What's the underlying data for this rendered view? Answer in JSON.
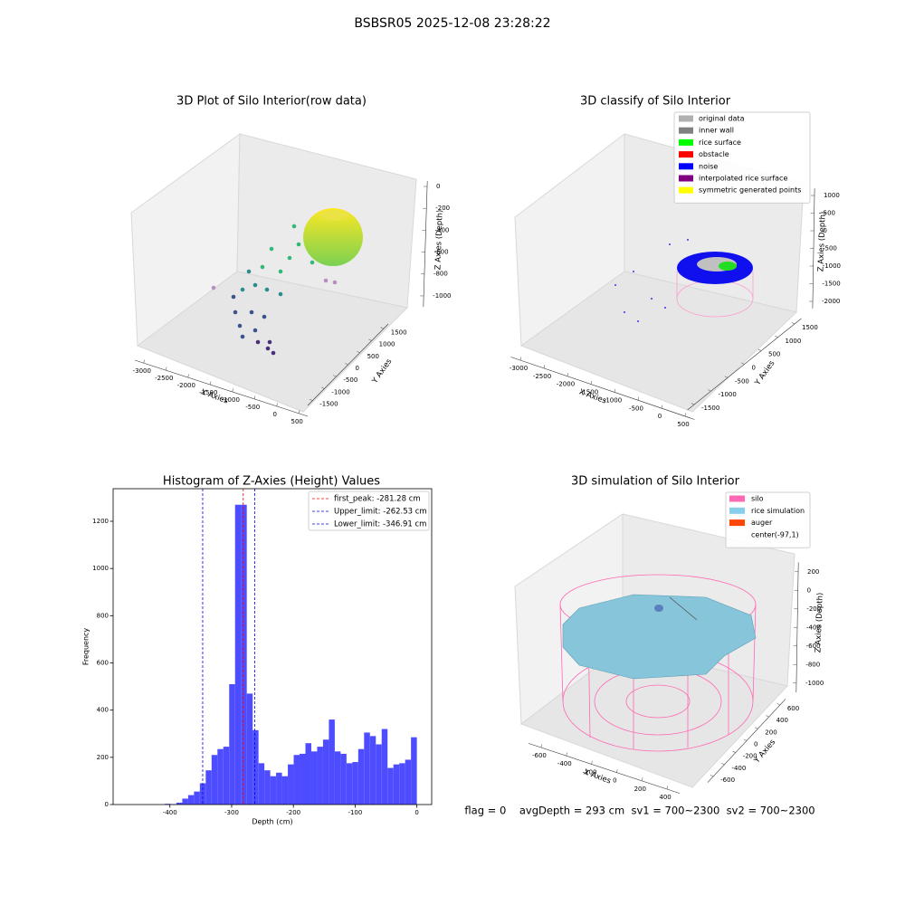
{
  "title": "BSBSR05 2025-12-08 23:28:22",
  "footer": "flag = 0    avgDepth = 293 cm  sv1 = 700~2300  sv2 = 700~2300",
  "chart_data": [
    {
      "type": "scatter3d",
      "title": "3D Plot of Silo Interior(row data)",
      "xlabel": "X Axies",
      "ylabel": "Y Axies",
      "zlabel": "Z Axies (Depth)",
      "xlim": [
        -3200,
        700
      ],
      "xticks": [
        -3000,
        -2500,
        -2000,
        -1500,
        -1000,
        -500,
        0,
        500
      ],
      "ylim": [
        -1700,
        1700
      ],
      "yticks": [
        -1500,
        -1000,
        -500,
        0,
        500,
        1000,
        1500
      ],
      "zlim": [
        -1100,
        50
      ],
      "zticks": [
        -1000,
        -800,
        -600,
        -400,
        -200,
        0
      ]
    },
    {
      "type": "scatter3d",
      "title": "3D classify of Silo Interior",
      "xlabel": "X Axies",
      "ylabel": "Y Axies",
      "zlabel": "Z Axies (Depth)",
      "xlim": [
        -3200,
        700
      ],
      "xticks": [
        -3000,
        -2500,
        -2000,
        -1500,
        -1000,
        -500,
        0,
        500
      ],
      "ylim": [
        -1700,
        1700
      ],
      "yticks": [
        -1500,
        -1000,
        -500,
        0,
        500,
        1000,
        1500
      ],
      "zlim": [
        -2200,
        1200
      ],
      "zticks": [
        -2000,
        -1500,
        -1000,
        -500,
        0,
        500,
        1000
      ],
      "legend": [
        {
          "name": "original data",
          "color": "#b0b0b0"
        },
        {
          "name": "inner wall",
          "color": "#808080"
        },
        {
          "name": "rice surface",
          "color": "#00ff00"
        },
        {
          "name": "obstacle",
          "color": "#ff0000"
        },
        {
          "name": "noise",
          "color": "#0000ff"
        },
        {
          "name": "interpolated rice surface",
          "color": "#800080"
        },
        {
          "name": "symmetric generated points",
          "color": "#ffff00"
        }
      ]
    },
    {
      "type": "histogram",
      "title": "Histogram of Z-Axies (Height) Values",
      "xlabel": "Depth (cm)",
      "ylabel": "Frequency",
      "color": "#4d4dff",
      "bins": [
        -475,
        -465.5,
        -456,
        -446.5,
        -437,
        -427.5,
        -418,
        -408.5,
        -399,
        -389.5,
        -380,
        -370.5,
        -361,
        -351.5,
        -342,
        -332.5,
        -323,
        -313.5,
        -304,
        -294.5,
        -285,
        -275.5,
        -266,
        -256.5,
        -247,
        -237.5,
        -228,
        -218.5,
        -209,
        -199.5,
        -190,
        -180.5,
        -171,
        -161.5,
        -152,
        -142.5,
        -133,
        -123.5,
        -114,
        -104.5,
        -95,
        -85.5,
        -76,
        -66.5,
        -57,
        -47.5,
        -38,
        -28.5,
        -19,
        -9.5,
        0
      ],
      "counts": [
        0,
        0,
        0,
        0,
        0,
        0,
        0,
        3,
        2,
        8,
        25,
        40,
        55,
        90,
        145,
        210,
        235,
        245,
        510,
        1270,
        1270,
        470,
        315,
        175,
        145,
        120,
        135,
        120,
        170,
        210,
        215,
        260,
        225,
        245,
        275,
        360,
        225,
        215,
        175,
        180,
        235,
        305,
        290,
        255,
        320,
        155,
        170,
        175,
        190,
        285
      ],
      "xlim": [
        -492,
        24
      ],
      "xticks": [
        -400,
        -300,
        -200,
        -100,
        0
      ],
      "ylim": [
        0,
        1338
      ],
      "yticks": [
        0,
        200,
        400,
        600,
        800,
        1000,
        1200
      ],
      "lines": [
        {
          "name": "first_peak: -281.28 cm",
          "value": -281.28,
          "color": "#ff0000"
        },
        {
          "name": "Upper_limit: -262.53 cm",
          "value": -262.53,
          "color": "#0000ff"
        },
        {
          "name": "Lower_limit: -346.91 cm",
          "value": -346.91,
          "color": "#0000ff"
        }
      ]
    },
    {
      "type": "scatter3d",
      "title": "3D simulation of Silo Interior",
      "xlabel": "X Axies",
      "ylabel": "Y Axies",
      "zlabel": "Z Axies (Depth)",
      "xlim": [
        -700,
        500
      ],
      "xticks": [
        -600,
        -400,
        -200,
        0,
        200,
        400
      ],
      "ylim": [
        -700,
        700
      ],
      "yticks": [
        -600,
        -400,
        -200,
        0,
        200,
        400,
        600
      ],
      "zlim": [
        -1100,
        300
      ],
      "zticks": [
        -1000,
        -800,
        -600,
        -400,
        -200,
        0,
        200
      ],
      "legend": [
        {
          "name": "silo",
          "color": "#ff69b4"
        },
        {
          "name": "rice simulation",
          "color": "#87ceeb"
        },
        {
          "name": "auger",
          "color": "#ff4500"
        },
        {
          "name": "center(-97,1)",
          "color": "#ffffff"
        }
      ]
    }
  ]
}
